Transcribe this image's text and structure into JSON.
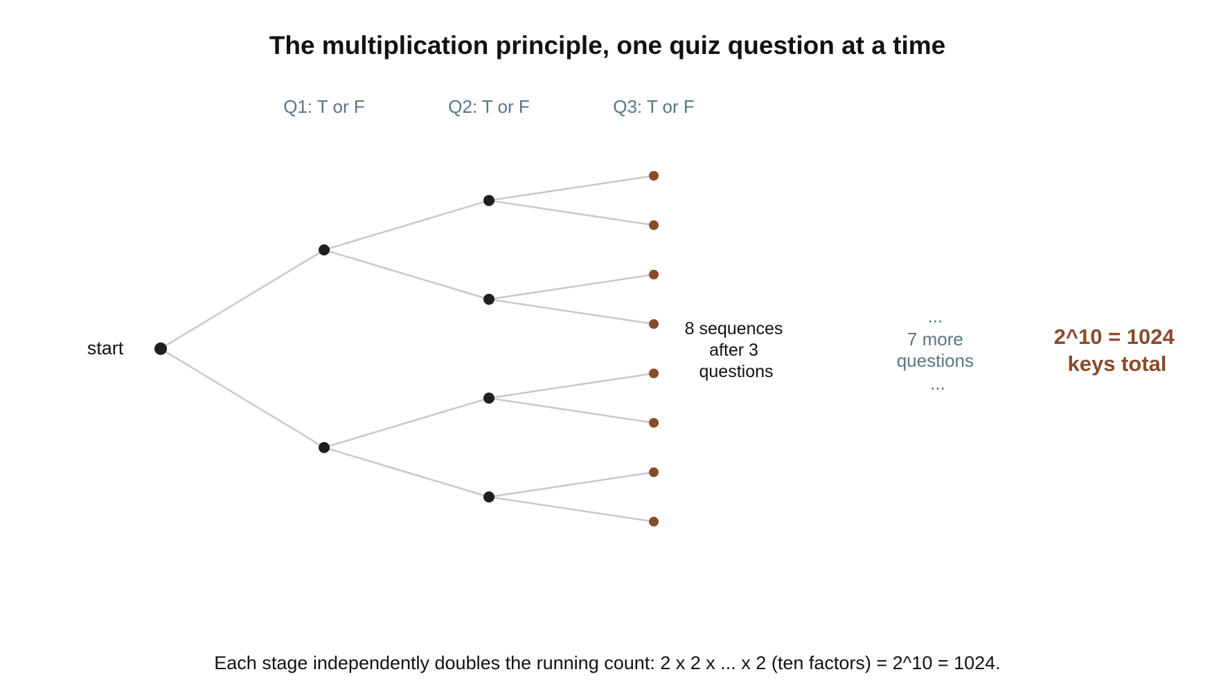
{
  "title": "The multiplication principle, one quiz question at a time",
  "stages": [
    "Q1: T or F",
    "Q2: T or F",
    "Q3: T or F"
  ],
  "start_label": "start",
  "sequences_note": [
    "8 sequences",
    "after 3",
    "questions"
  ],
  "more_questions": [
    "...",
    "7 more",
    "questions",
    "..."
  ],
  "total": [
    "2^10 = 1024",
    "keys total"
  ],
  "footer": "Each stage independently doubles the running count: 2 x 2 x ... x 2 (ten factors) = 2^10 = 1024.",
  "colors": {
    "inner_node": "#1f1f1f",
    "leaf_node": "#8b4a2b",
    "edge": "#c8c8c8",
    "stage_text": "#5a7585",
    "accent": "#8b4a2b"
  },
  "tree": {
    "depth": 3,
    "branching": 2,
    "leaf_count": 8
  }
}
